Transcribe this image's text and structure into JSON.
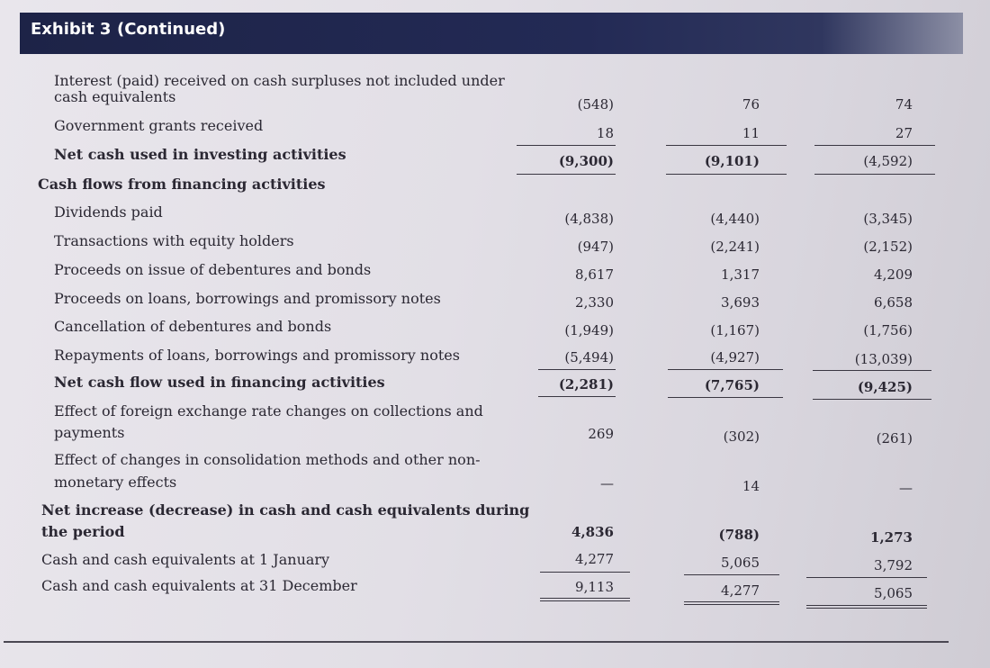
{
  "header": {
    "title": "Exhibit 3",
    "subtitle": "(Continued)"
  },
  "rows": [
    {
      "label": "Interest (paid) received on cash surpluses not included under",
      "bold": false,
      "indent": 1
    },
    {
      "label": "cash equivalents",
      "bold": false,
      "indent": 1,
      "c1": "(548)",
      "c2": "76",
      "c3": "74"
    },
    {
      "label": "Government grants received",
      "bold": false,
      "indent": 1,
      "c1": "18",
      "c2": "11",
      "c3": "27"
    },
    {
      "label": "Net cash used in investing activities",
      "bold": true,
      "indent": 1,
      "c1": "(9,300)",
      "c2": "(9,101)",
      "c3": "(4,592)"
    },
    {
      "label": "Cash flows from financing activities",
      "bold": true,
      "indent": 0
    },
    {
      "label": "Dividends paid",
      "bold": false,
      "indent": 1,
      "c1": "(4,838)",
      "c2": "(4,440)",
      "c3": "(3,345)"
    },
    {
      "label": "Transactions with equity holders",
      "bold": false,
      "indent": 1,
      "c1": "(947)",
      "c2": "(2,241)",
      "c3": "(2,152)"
    },
    {
      "label": "Proceeds on issue of debentures and bonds",
      "bold": false,
      "indent": 1,
      "c1": "8,617",
      "c2": "1,317",
      "c3": "4,209"
    },
    {
      "label": "Proceeds on loans, borrowings and promissory notes",
      "bold": false,
      "indent": 1,
      "c1": "2,330",
      "c2": "3,693",
      "c3": "6,658"
    },
    {
      "label": "Cancellation of debentures and bonds",
      "bold": false,
      "indent": 1,
      "c1": "(1,949)",
      "c2": "(1,167)",
      "c3": "(1,756)"
    },
    {
      "label": "Repayments of loans, borrowings and promissory notes",
      "bold": false,
      "indent": 1,
      "c1": "(5,494)",
      "c2": "(4,927)",
      "c3": "(13,039)"
    },
    {
      "label": "Net cash flow used in financing activities",
      "bold": true,
      "indent": 1,
      "c1": "(2,281)",
      "c2": "(7,765)",
      "c3": "(9,425)"
    },
    {
      "label": "Effect of foreign exchange rate changes on collections and",
      "bold": false,
      "indent": 1
    },
    {
      "label": "payments",
      "bold": false,
      "indent": 1,
      "c1": "269",
      "c2": "(302)",
      "c3": "(261)"
    },
    {
      "label": "Effect of changes in consolidation methods and other non-",
      "bold": false,
      "indent": 1
    },
    {
      "label": "monetary effects",
      "bold": false,
      "indent": 1,
      "c1": "—",
      "c2": "14",
      "c3": "—"
    },
    {
      "label": "Net increase (decrease) in cash and cash equivalents during",
      "bold": true,
      "indent": 0
    },
    {
      "label": "the period",
      "bold": true,
      "indent": 0,
      "c1": "4,836",
      "c2": "(788)",
      "c3": "1,273"
    },
    {
      "label": "Cash and cash equivalents at 1 January",
      "bold": false,
      "indent": 0,
      "c1": "4,277",
      "c2": "5,065",
      "c3": "3,792"
    },
    {
      "label": "Cash and cash equivalents at 31 December",
      "bold": false,
      "indent": 0,
      "c1": "9,113",
      "c2": "4,277",
      "c3": "5,065"
    }
  ]
}
